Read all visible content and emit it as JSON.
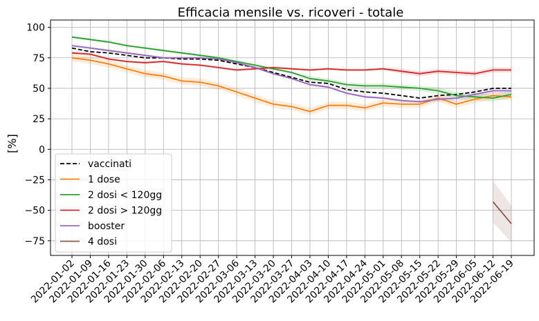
{
  "chart_data": {
    "type": "line",
    "title": "Efficacia mensile vs. ricoveri - totale",
    "xlabel": "",
    "ylabel": "[%]",
    "ylim": [
      -87,
      106
    ],
    "yticks": [
      -75,
      -50,
      -25,
      0,
      25,
      50,
      75,
      100
    ],
    "ytick_labels": [
      "−75",
      "−50",
      "−25",
      "0",
      "25",
      "50",
      "75",
      "100"
    ],
    "grid": true,
    "legend_position": "lower-left",
    "categories": [
      "2022-01-02",
      "2022-01-09",
      "2022-01-16",
      "2022-01-23",
      "2022-01-30",
      "2022-02-06",
      "2022-02-13",
      "2022-02-20",
      "2022-02-27",
      "2022-03-06",
      "2022-03-13",
      "2022-03-20",
      "2022-03-27",
      "2022-04-03",
      "2022-04-10",
      "2022-04-17",
      "2022-04-24",
      "2022-05-01",
      "2022-05-08",
      "2022-05-15",
      "2022-05-22",
      "2022-05-29",
      "2022-06-05",
      "2022-06-12",
      "2022-06-19"
    ],
    "series": [
      {
        "name": "vaccinati",
        "color": "#000000",
        "dashed": true,
        "values": [
          83,
          80,
          79,
          77,
          75,
          75,
          74,
          74,
          73,
          70,
          67,
          63,
          59,
          55,
          54,
          49,
          47,
          46,
          44,
          42,
          44,
          45,
          47,
          50,
          50
        ]
      },
      {
        "name": "1 dose",
        "color": "#ff7f0e",
        "dashed": false,
        "values": [
          75,
          73,
          70,
          66,
          62,
          60,
          56,
          55,
          52,
          47,
          42,
          37,
          35,
          31,
          36,
          36,
          34,
          38,
          37,
          37,
          42,
          37,
          41,
          44,
          43
        ],
        "band": [
          3,
          3,
          3,
          3,
          3,
          3,
          3,
          3,
          3,
          3,
          3,
          3,
          3,
          3,
          3,
          3,
          3,
          3,
          3,
          3,
          3,
          3,
          3,
          3,
          3
        ]
      },
      {
        "name": "2 dosi < 120gg",
        "color": "#2ca02c",
        "dashed": false,
        "values": [
          92,
          90,
          88,
          85,
          83,
          81,
          79,
          77,
          75,
          72,
          69,
          66,
          63,
          58,
          56,
          53,
          52,
          52,
          51,
          50,
          48,
          44,
          43,
          42,
          45
        ],
        "band": [
          1,
          1,
          1,
          1,
          1,
          1,
          1,
          1,
          1,
          1,
          1,
          1,
          1,
          2,
          2,
          2,
          2,
          2,
          2,
          2,
          3,
          3,
          3,
          3,
          3
        ]
      },
      {
        "name": "2 dosi > 120gg",
        "color": "#d62728",
        "dashed": false,
        "values": [
          79,
          78,
          74,
          72,
          71,
          72,
          70,
          69,
          67,
          65,
          66,
          67,
          66,
          65,
          66,
          65,
          65,
          66,
          64,
          62,
          64,
          63,
          62,
          65,
          65
        ],
        "band": [
          1,
          1,
          1,
          1,
          1,
          1,
          1,
          1,
          1,
          1,
          1,
          1,
          1,
          1,
          1,
          1,
          1,
          1,
          2,
          2,
          2,
          2,
          2,
          2,
          2
        ]
      },
      {
        "name": "booster",
        "color": "#9467bd",
        "dashed": false,
        "values": [
          85,
          83,
          81,
          79,
          77,
          75,
          75,
          75,
          74,
          71,
          67,
          62,
          58,
          53,
          51,
          46,
          43,
          42,
          40,
          39,
          41,
          42,
          45,
          48,
          48
        ],
        "band": [
          1,
          1,
          1,
          1,
          1,
          1,
          1,
          1,
          1,
          1,
          1,
          1,
          1,
          1,
          1,
          1,
          1,
          1,
          1,
          1,
          2,
          2,
          2,
          2,
          2
        ]
      },
      {
        "name": "4 dosi",
        "color": "#8c564b",
        "dashed": false,
        "values": [
          null,
          null,
          null,
          null,
          null,
          null,
          null,
          null,
          null,
          null,
          null,
          null,
          null,
          null,
          null,
          null,
          null,
          null,
          null,
          null,
          null,
          null,
          null,
          -43,
          -61
        ],
        "band": [
          0,
          0,
          0,
          0,
          0,
          0,
          0,
          0,
          0,
          0,
          0,
          0,
          0,
          0,
          0,
          0,
          0,
          0,
          0,
          0,
          0,
          0,
          0,
          17,
          15
        ]
      }
    ]
  }
}
